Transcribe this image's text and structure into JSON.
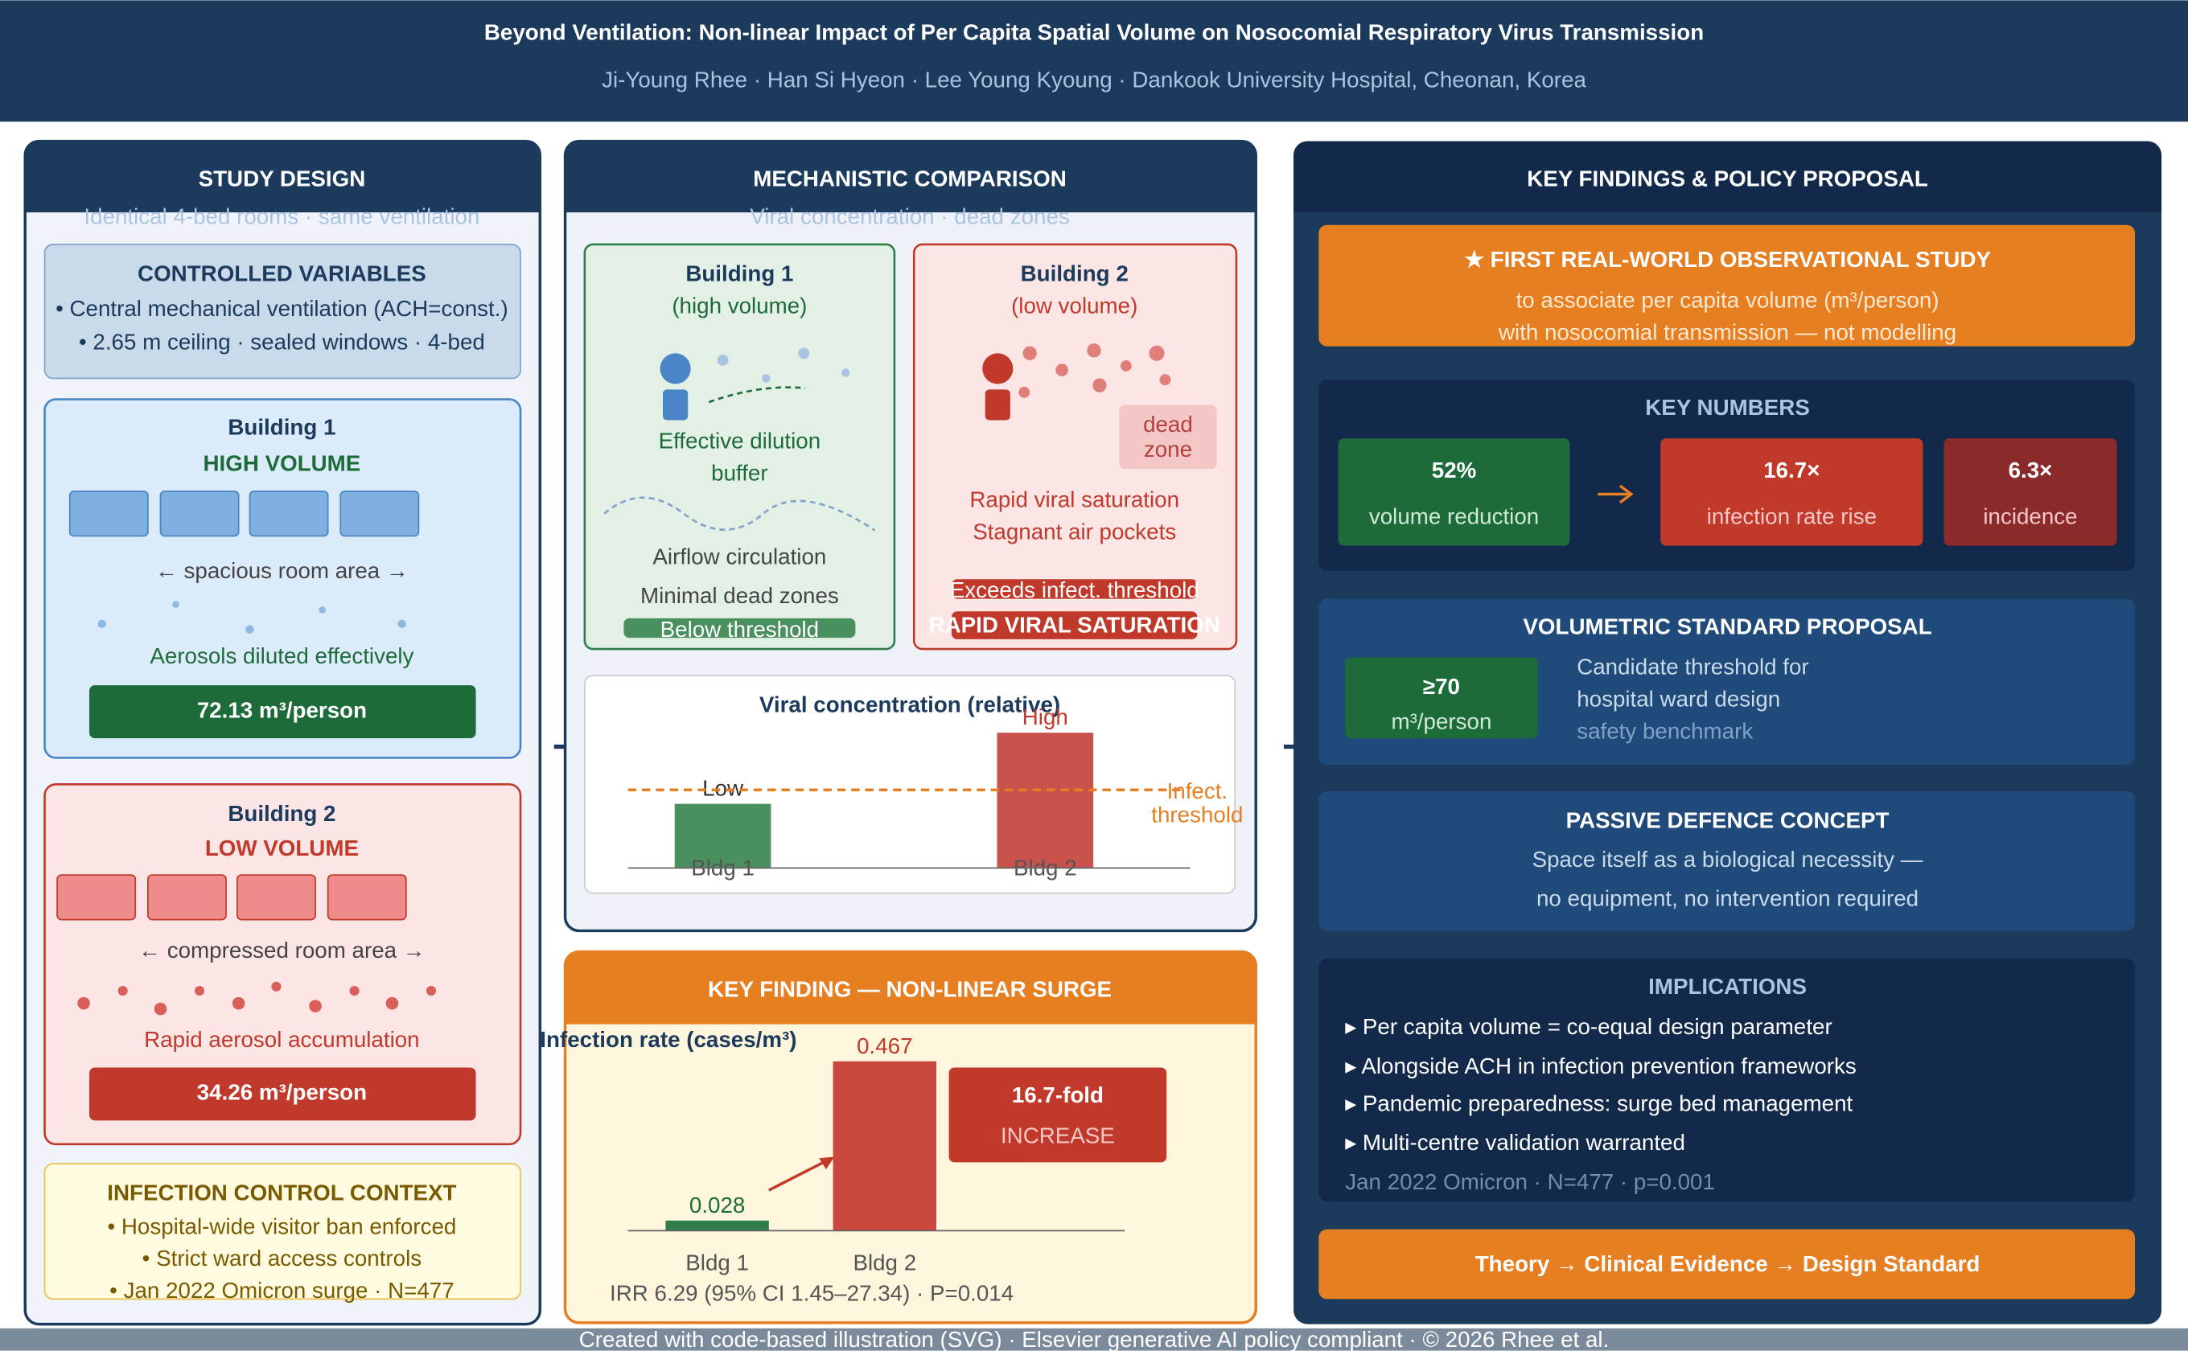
{
  "header": {
    "title": "Beyond Ventilation: Non-linear Impact of Per Capita Spatial Volume on Nosocomial Respiratory Virus Transmission",
    "authors": "Ji-Young Rhee · Han Si Hyeon · Lee Young Kyoung · Dankook University Hospital, Cheonan, Korea"
  },
  "study_design": {
    "title": "STUDY DESIGN",
    "subtitle": "Identical 4-bed rooms · same ventilation",
    "controlled": {
      "title": "CONTROLLED VARIABLES",
      "lines": [
        "• Central mechanical ventilation (ACH=const.)",
        "• 2.65 m ceiling · sealed windows · 4-bed"
      ]
    },
    "building1": {
      "title": "Building 1",
      "label": "HIGH VOLUME",
      "area": "← spacious room area →",
      "note": "Aerosols diluted effectively",
      "volume": "72.13 m³/person"
    },
    "building2": {
      "title": "Building 2",
      "label": "LOW VOLUME",
      "area": "← compressed room area →",
      "note": "Rapid aerosol accumulation",
      "volume": "34.26 m³/person"
    },
    "context": {
      "title": "INFECTION CONTROL CONTEXT",
      "lines": [
        "• Hospital-wide visitor ban enforced",
        "• Strict ward access controls",
        "• Jan 2022 Omicron surge · N=477"
      ]
    }
  },
  "mechanistic": {
    "title": "MECHANISTIC COMPARISON",
    "subtitle": "Viral concentration · dead zones",
    "building1": {
      "title": "Building 1",
      "label": "(high volume)",
      "lines": [
        "Effective dilution",
        "buffer"
      ],
      "airflow": "Airflow circulation",
      "dead_zones": "Minimal dead zones",
      "badge": "Below threshold"
    },
    "building2": {
      "title": "Building 2",
      "label": "(low volume)",
      "dead_zone": [
        "dead",
        "zone"
      ],
      "lines": [
        "Rapid viral saturation",
        "Stagnant air pockets"
      ],
      "badges": [
        "Exceeds infect. threshold",
        "RAPID VIRAL SATURATION"
      ]
    }
  },
  "key_finding": {
    "title": "KEY FINDING — NON-LINEAR SURGE",
    "callout": {
      "value": "16.7-fold",
      "label": "INCREASE"
    },
    "footnote": "IRR 6.29 (95% CI 1.45–27.34) · P=0.014"
  },
  "chart_data": [
    {
      "type": "bar",
      "title": "Viral concentration (relative)",
      "categories": [
        "Bldg 1",
        "Bldg 2"
      ],
      "values": [
        46,
        97
      ],
      "value_labels": [
        "Low",
        "High"
      ],
      "colors": [
        "#4a8f5e",
        "#c9524a"
      ],
      "ylim": [
        0,
        100
      ],
      "threshold": 56,
      "threshold_label": [
        "Infect.",
        "threshold"
      ]
    },
    {
      "type": "bar",
      "title": "Infection rate (cases/m³)",
      "categories": [
        "Bldg 1",
        "Bldg 2"
      ],
      "values": [
        0.028,
        0.467
      ],
      "colors": [
        "#2e7d4a",
        "#c9483e"
      ],
      "ylim": [
        0,
        0.5
      ]
    }
  ],
  "findings": {
    "title": "KEY FINDINGS & POLICY PROPOSAL",
    "first": {
      "title": "★ FIRST REAL-WORLD OBSERVATIONAL STUDY",
      "lines": [
        "to associate per capita volume (m³/person)",
        "with nosocomial transmission — not modelling"
      ]
    },
    "key_numbers": {
      "title": "KEY NUMBERS",
      "items": [
        {
          "value": "52%",
          "label": "volume reduction"
        },
        {
          "value": "16.7×",
          "label": "infection rate rise"
        },
        {
          "value": "6.3×",
          "label": "incidence"
        }
      ]
    },
    "standard": {
      "title": "VOLUMETRIC STANDARD PROPOSAL",
      "value": "≥70",
      "unit": "m³/person",
      "lines": [
        "Candidate threshold for",
        "hospital ward design"
      ],
      "note": "safety benchmark"
    },
    "passive": {
      "title": "PASSIVE DEFENCE CONCEPT",
      "lines": [
        "Space itself as a biological necessity —",
        "no equipment, no intervention required"
      ]
    },
    "implications": {
      "title": "IMPLICATIONS",
      "items": [
        "▸ Per capita volume = co-equal design parameter",
        "▸ Alongside ACH in infection prevention frameworks",
        "▸ Pandemic preparedness: surge bed management",
        "▸ Multi-centre validation warranted"
      ],
      "note": "Jan 2022 Omicron · N=477 · p=0.001"
    },
    "tagline": "Theory → Clinical Evidence → Design Standard"
  },
  "footer": "Created with code-based illustration (SVG) · Elsevier generative AI policy compliant · © 2026 Rhee et al."
}
